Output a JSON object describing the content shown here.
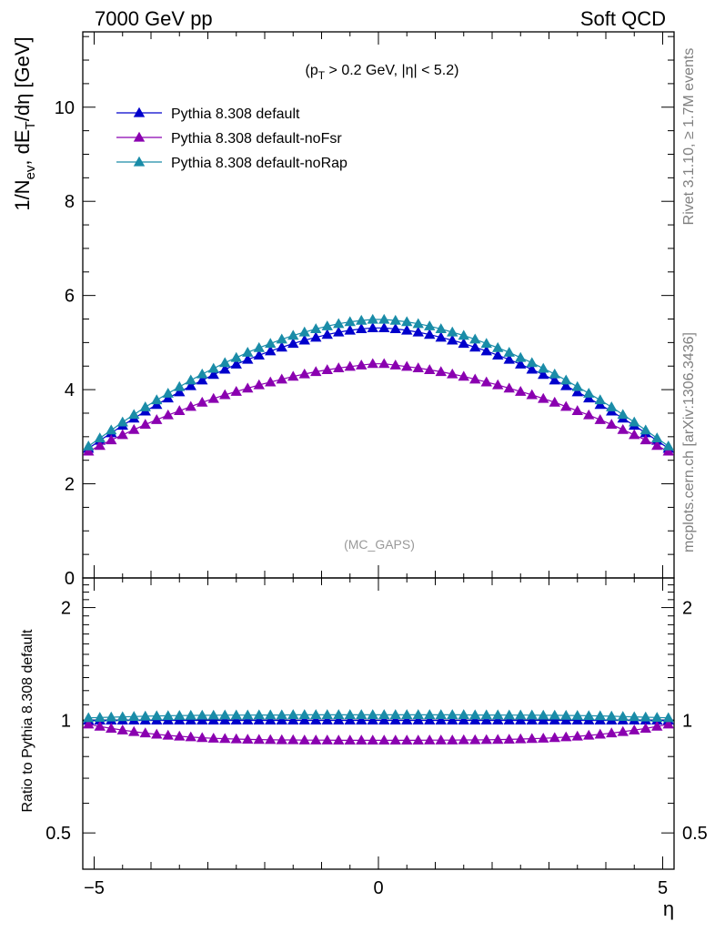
{
  "header": {
    "left": "7000 GeV pp",
    "right": "Soft QCD"
  },
  "side_labels": {
    "rivet": "Rivet 3.1.10, ≥ 1.7M events",
    "mcplots": "mcplots.cern.ch [arXiv:1306.3436]"
  },
  "chart_data": [
    {
      "type": "scatter",
      "panel": "main",
      "cut_label": {
        "pre": "(p",
        "sub": "T",
        "post": " > 0.2 GeV, |η| < 5.2)"
      },
      "analysis_tag": "(MC_GAPS)",
      "ylabel": {
        "a": "1/N",
        "a_sub": "ev",
        "b": ", dE",
        "b_sub": "T",
        "c": "/dη [GeV]"
      },
      "xlim": [
        -5.2,
        5.2
      ],
      "ylim": [
        0,
        11.6
      ],
      "yticks": [
        "0",
        "2",
        "4",
        "6",
        "8",
        "10"
      ],
      "legend_position": "top-left",
      "x": [
        -5.1,
        -4.9,
        -4.7,
        -4.5,
        -4.3,
        -4.1,
        -3.9,
        -3.7,
        -3.5,
        -3.3,
        -3.1,
        -2.9,
        -2.7,
        -2.5,
        -2.3,
        -2.1,
        -1.9,
        -1.7,
        -1.5,
        -1.3,
        -1.1,
        -0.9,
        -0.7,
        -0.5,
        -0.3,
        -0.1,
        0.1,
        0.3,
        0.5,
        0.7,
        0.9,
        1.1,
        1.3,
        1.5,
        1.7,
        1.9,
        2.1,
        2.3,
        2.5,
        2.7,
        2.9,
        3.1,
        3.3,
        3.5,
        3.7,
        3.9,
        4.1,
        4.3,
        4.5,
        4.7,
        4.9,
        5.1
      ],
      "series": [
        {
          "name": "Pythia 8.308 default",
          "color": "#0000cc",
          "values": [
            2.75,
            2.92,
            3.08,
            3.24,
            3.39,
            3.54,
            3.68,
            3.82,
            3.95,
            4.08,
            4.2,
            4.32,
            4.43,
            4.54,
            4.64,
            4.73,
            4.82,
            4.9,
            4.98,
            5.05,
            5.11,
            5.17,
            5.22,
            5.26,
            5.29,
            5.31,
            5.31,
            5.29,
            5.26,
            5.22,
            5.17,
            5.11,
            5.05,
            4.98,
            4.9,
            4.82,
            4.73,
            4.64,
            4.54,
            4.43,
            4.32,
            4.2,
            4.08,
            3.95,
            3.82,
            3.68,
            3.54,
            3.39,
            3.24,
            3.08,
            2.92,
            2.75
          ]
        },
        {
          "name": "Pythia 8.308 default-noFsr",
          "color": "#8a00b0",
          "values": [
            2.69,
            2.81,
            2.93,
            3.04,
            3.15,
            3.26,
            3.36,
            3.46,
            3.55,
            3.64,
            3.73,
            3.81,
            3.89,
            3.96,
            4.03,
            4.1,
            4.16,
            4.22,
            4.28,
            4.33,
            4.38,
            4.42,
            4.46,
            4.49,
            4.52,
            4.55,
            4.55,
            4.52,
            4.49,
            4.46,
            4.42,
            4.38,
            4.33,
            4.28,
            4.22,
            4.16,
            4.1,
            4.03,
            3.96,
            3.89,
            3.81,
            3.73,
            3.64,
            3.55,
            3.46,
            3.36,
            3.26,
            3.15,
            3.04,
            2.93,
            2.81,
            2.69
          ]
        },
        {
          "name": "Pythia 8.308 default-noRap",
          "color": "#1a8ca8",
          "values": [
            2.8,
            2.97,
            3.14,
            3.31,
            3.47,
            3.63,
            3.78,
            3.92,
            4.06,
            4.2,
            4.33,
            4.45,
            4.57,
            4.68,
            4.79,
            4.89,
            4.98,
            5.07,
            5.15,
            5.22,
            5.29,
            5.35,
            5.4,
            5.44,
            5.47,
            5.49,
            5.49,
            5.47,
            5.44,
            5.4,
            5.35,
            5.29,
            5.22,
            5.15,
            5.07,
            4.98,
            4.89,
            4.79,
            4.68,
            4.57,
            4.45,
            4.33,
            4.2,
            4.06,
            3.92,
            3.78,
            3.63,
            3.47,
            3.31,
            3.14,
            2.97,
            2.8
          ]
        }
      ]
    },
    {
      "type": "scatter",
      "panel": "ratio",
      "ylabel": "Ratio to Pythia 8.308 default",
      "xlabel": "η",
      "xlim": [
        -5.2,
        5.2
      ],
      "ylim": [
        0.4,
        2.4
      ],
      "yscale": "log",
      "yticks": [
        "0.5",
        "1",
        "2"
      ],
      "xticks": [
        "−5",
        "0",
        "5"
      ],
      "x": [
        -5.1,
        -4.9,
        -4.7,
        -4.5,
        -4.3,
        -4.1,
        -3.9,
        -3.7,
        -3.5,
        -3.3,
        -3.1,
        -2.9,
        -2.7,
        -2.5,
        -2.3,
        -2.1,
        -1.9,
        -1.7,
        -1.5,
        -1.3,
        -1.1,
        -0.9,
        -0.7,
        -0.5,
        -0.3,
        -0.1,
        0.1,
        0.3,
        0.5,
        0.7,
        0.9,
        1.1,
        1.3,
        1.5,
        1.7,
        1.9,
        2.1,
        2.3,
        2.5,
        2.7,
        2.9,
        3.1,
        3.3,
        3.5,
        3.7,
        3.9,
        4.1,
        4.3,
        4.5,
        4.7,
        4.9,
        5.1
      ],
      "series": [
        {
          "name": "Pythia 8.308 default",
          "color": "#0000cc",
          "values": [
            1.0,
            1.0,
            1.0,
            1.0,
            1.0,
            1.0,
            1.0,
            1.0,
            1.0,
            1.0,
            1.0,
            1.0,
            1.0,
            1.0,
            1.0,
            1.0,
            1.0,
            1.0,
            1.0,
            1.0,
            1.0,
            1.0,
            1.0,
            1.0,
            1.0,
            1.0,
            1.0,
            1.0,
            1.0,
            1.0,
            1.0,
            1.0,
            1.0,
            1.0,
            1.0,
            1.0,
            1.0,
            1.0,
            1.0,
            1.0,
            1.0,
            1.0,
            1.0,
            1.0,
            1.0,
            1.0,
            1.0,
            1.0,
            1.0,
            1.0,
            1.0,
            1.0
          ]
        },
        {
          "name": "Pythia 8.308 default-noFsr",
          "color": "#8a00b0",
          "values": [
            0.976,
            0.963,
            0.951,
            0.941,
            0.932,
            0.924,
            0.917,
            0.911,
            0.906,
            0.902,
            0.898,
            0.895,
            0.893,
            0.891,
            0.889,
            0.888,
            0.887,
            0.886,
            0.886,
            0.885,
            0.885,
            0.885,
            0.884,
            0.884,
            0.884,
            0.884,
            0.884,
            0.884,
            0.884,
            0.884,
            0.885,
            0.885,
            0.885,
            0.886,
            0.886,
            0.887,
            0.888,
            0.889,
            0.891,
            0.893,
            0.895,
            0.898,
            0.902,
            0.906,
            0.911,
            0.917,
            0.924,
            0.932,
            0.941,
            0.951,
            0.963,
            0.976
          ]
        },
        {
          "name": "Pythia 8.308 default-noRap",
          "color": "#1a8ca8",
          "values": [
            1.015,
            1.017,
            1.019,
            1.021,
            1.023,
            1.025,
            1.027,
            1.028,
            1.029,
            1.03,
            1.031,
            1.031,
            1.032,
            1.032,
            1.032,
            1.033,
            1.033,
            1.033,
            1.034,
            1.034,
            1.034,
            1.034,
            1.034,
            1.034,
            1.034,
            1.034,
            1.034,
            1.034,
            1.034,
            1.034,
            1.034,
            1.034,
            1.034,
            1.034,
            1.033,
            1.033,
            1.033,
            1.032,
            1.032,
            1.032,
            1.031,
            1.031,
            1.03,
            1.029,
            1.028,
            1.027,
            1.025,
            1.023,
            1.021,
            1.019,
            1.017,
            1.015
          ]
        }
      ]
    }
  ]
}
